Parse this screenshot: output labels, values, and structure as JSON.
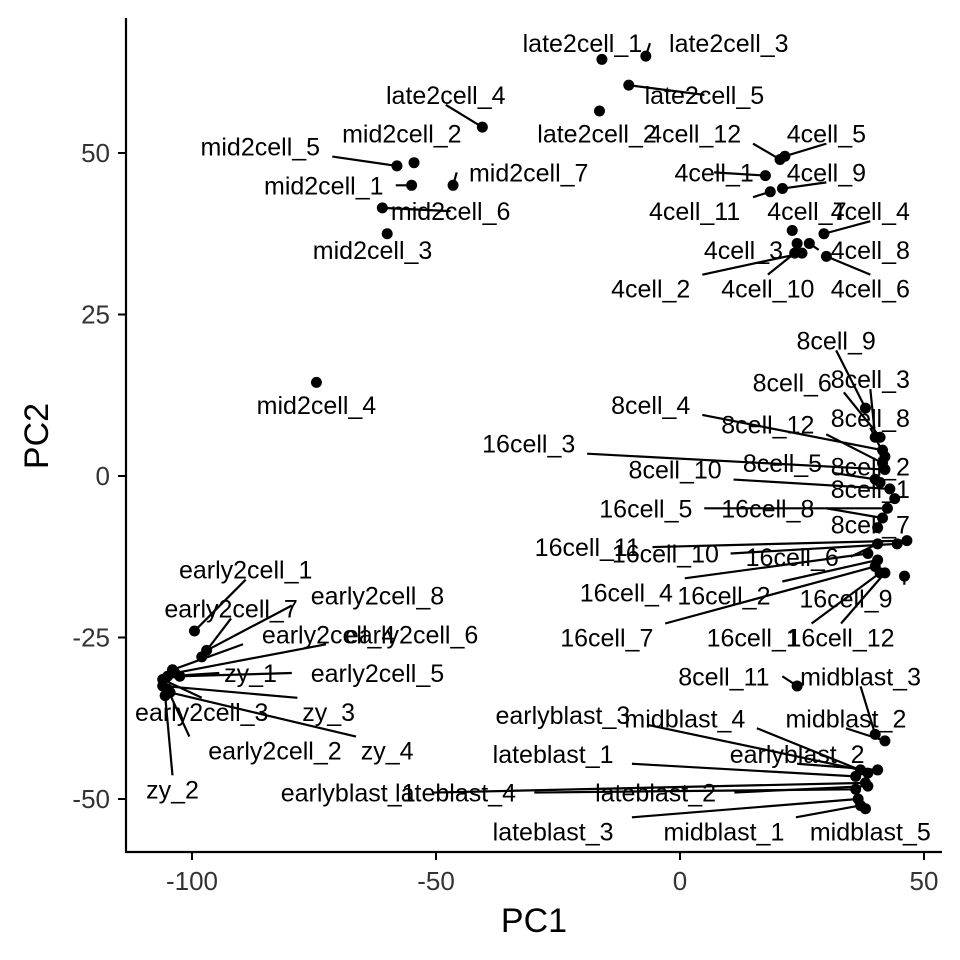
{
  "chart_data": {
    "type": "scatter",
    "title": "",
    "xlabel": "PC1",
    "ylabel": "PC2",
    "xlim": [
      -113,
      53
    ],
    "ylim": [
      -58,
      71
    ],
    "xticks": [
      -100,
      -50,
      0,
      50
    ],
    "yticks": [
      50,
      25,
      0,
      -25,
      -50
    ],
    "grid": false,
    "legend": "none",
    "points": [
      {
        "label": "late2cell_1",
        "x": -16,
        "y": 64.5,
        "lx": -20,
        "ly": 67
      },
      {
        "label": "late2cell_3",
        "x": -7,
        "y": 65,
        "lx": 10,
        "ly": 67
      },
      {
        "label": "late2cell_5",
        "x": -10.5,
        "y": 60.5,
        "lx": 5,
        "ly": 59
      },
      {
        "label": "late2cell_4",
        "x": -40.5,
        "y": 54,
        "lx": -48,
        "ly": 59
      },
      {
        "label": "late2cell_2",
        "x": -16.5,
        "y": 56.5,
        "lx": -17,
        "ly": 53
      },
      {
        "label": "mid2cell_2",
        "x": -54.5,
        "y": 48.5,
        "lx": -57,
        "ly": 53
      },
      {
        "label": "mid2cell_5",
        "x": -58,
        "y": 48,
        "lx": -86,
        "ly": 51
      },
      {
        "label": "mid2cell_7",
        "x": -46.5,
        "y": 45,
        "lx": -31,
        "ly": 47
      },
      {
        "label": "mid2cell_1",
        "x": -55,
        "y": 45,
        "lx": -73,
        "ly": 45
      },
      {
        "label": "mid2cell_6",
        "x": -61,
        "y": 41.5,
        "lx": -47,
        "ly": 41
      },
      {
        "label": "mid2cell_3",
        "x": -60,
        "y": 37.5,
        "lx": -63,
        "ly": 35
      },
      {
        "label": "mid2cell_4",
        "x": -74.5,
        "y": 14.5,
        "lx": -74.5,
        "ly": 11
      },
      {
        "label": "4cell_12",
        "x": 20.5,
        "y": 49,
        "lx": 3,
        "ly": 53
      },
      {
        "label": "4cell_5",
        "x": 21.5,
        "y": 49.5,
        "lx": 30,
        "ly": 53
      },
      {
        "label": "4cell_1",
        "x": 17.5,
        "y": 46.5,
        "lx": 7,
        "ly": 47
      },
      {
        "label": "4cell_9",
        "x": 21,
        "y": 44.5,
        "lx": 30,
        "ly": 47
      },
      {
        "label": "4cell_11",
        "x": 18.5,
        "y": 44,
        "lx": 3,
        "ly": 41
      },
      {
        "label": "4cell_7",
        "x": 23,
        "y": 38,
        "lx": 26,
        "ly": 41
      },
      {
        "label": "4cell_4",
        "x": 29.5,
        "y": 37.5,
        "lx": 39,
        "ly": 41
      },
      {
        "label": "4cell_3",
        "x": 24,
        "y": 36,
        "lx": 13,
        "ly": 35
      },
      {
        "label": "4cell_8",
        "x": 26.5,
        "y": 36,
        "lx": 39,
        "ly": 35
      },
      {
        "label": "4cell_2",
        "x": 25,
        "y": 34.5,
        "lx": -6,
        "ly": 29
      },
      {
        "label": "4cell_10",
        "x": 23.5,
        "y": 34.5,
        "lx": 18,
        "ly": 29
      },
      {
        "label": "4cell_6",
        "x": 30,
        "y": 34,
        "lx": 39,
        "ly": 29
      },
      {
        "label": "8cell_9",
        "x": 38,
        "y": 10.5,
        "lx": 32,
        "ly": 21
      },
      {
        "label": "8cell_6",
        "x": 41,
        "y": 6,
        "lx": 23,
        "ly": 14.5
      },
      {
        "label": "8cell_3",
        "x": 40,
        "y": 6,
        "lx": 39,
        "ly": 15
      },
      {
        "label": "8cell_4",
        "x": 41.5,
        "y": 4,
        "lx": -6,
        "ly": 11
      },
      {
        "label": "8cell_8",
        "x": 42,
        "y": 3,
        "lx": 39,
        "ly": 9
      },
      {
        "label": "8cell_12",
        "x": 41.5,
        "y": 2,
        "lx": 18,
        "ly": 8
      },
      {
        "label": "16cell_3",
        "x": 42,
        "y": 1,
        "lx": -31,
        "ly": 5
      },
      {
        "label": "8cell_5",
        "x": 40,
        "y": -0.5,
        "lx": 21,
        "ly": 2
      },
      {
        "label": "8cell_2",
        "x": 41,
        "y": -1,
        "lx": 39,
        "ly": 1.5
      },
      {
        "label": "8cell_10",
        "x": 43,
        "y": -2,
        "lx": -1,
        "ly": 1
      },
      {
        "label": "8cell_1",
        "x": 44,
        "y": -3.5,
        "lx": 39,
        "ly": -2
      },
      {
        "label": "16cell_5",
        "x": 42.5,
        "y": -5,
        "lx": -7,
        "ly": -5
      },
      {
        "label": "16cell_8",
        "x": 41.5,
        "y": -6.5,
        "lx": 18,
        "ly": -5
      },
      {
        "label": "8cell_7",
        "x": 40.5,
        "y": -8,
        "lx": 39,
        "ly": -7.5
      },
      {
        "label": "16cell_11",
        "x": 46.5,
        "y": -10,
        "lx": -19,
        "ly": -11
      },
      {
        "label": "16cell_10",
        "x": 44.5,
        "y": -10.5,
        "lx": -3,
        "ly": -12
      },
      {
        "label": "16cell_6",
        "x": 40.5,
        "y": -10.5,
        "lx": 23,
        "ly": -12.5
      },
      {
        "label": "16cell_4",
        "x": 38.5,
        "y": -12,
        "lx": -11,
        "ly": -18
      },
      {
        "label": "16cell_2",
        "x": 40.5,
        "y": -13,
        "lx": 9,
        "ly": -18.5
      },
      {
        "label": "16cell_9",
        "x": 46,
        "y": -15.5,
        "lx": 34,
        "ly": -19
      },
      {
        "label": "16cell_7",
        "x": 40,
        "y": -14,
        "lx": -15,
        "ly": -25
      },
      {
        "label": "16cell_1",
        "x": 41,
        "y": -15,
        "lx": 15,
        "ly": -25
      },
      {
        "label": "16cell_12",
        "x": 42,
        "y": -15,
        "lx": 33,
        "ly": -25
      },
      {
        "label": "8cell_11",
        "x": 24,
        "y": -32.5,
        "lx": 9,
        "ly": -31
      },
      {
        "label": "midblast_3",
        "x": 40,
        "y": -40,
        "lx": 37,
        "ly": -31
      },
      {
        "label": "earlyblast_3",
        "x": 37,
        "y": -45.5,
        "lx": -24,
        "ly": -37
      },
      {
        "label": "midblast_4",
        "x": 38.5,
        "y": -46,
        "lx": 1,
        "ly": -37.5
      },
      {
        "label": "midblast_2",
        "x": 42,
        "y": -41,
        "lx": 34,
        "ly": -37.5
      },
      {
        "label": "lateblast_1",
        "x": 36,
        "y": -46.5,
        "lx": -26,
        "ly": -43
      },
      {
        "label": "earlyblast_2",
        "x": 40.5,
        "y": -45.5,
        "lx": 24,
        "ly": -43
      },
      {
        "label": "earlyblast_1",
        "x": 38,
        "y": -47.5,
        "lx": -68,
        "ly": -49
      },
      {
        "label": "lateblast_4",
        "x": 36,
        "y": -48.5,
        "lx": -46,
        "ly": -49
      },
      {
        "label": "lateblast_2",
        "x": 38.5,
        "y": -48,
        "lx": -5,
        "ly": -49
      },
      {
        "label": "lateblast_3",
        "x": 36.5,
        "y": -50,
        "lx": -26,
        "ly": -55
      },
      {
        "label": "midblast_1",
        "x": 37,
        "y": -51,
        "lx": 9,
        "ly": -55
      },
      {
        "label": "midblast_5",
        "x": 38,
        "y": -51.5,
        "lx": 39,
        "ly": -55
      },
      {
        "label": "early2cell_1",
        "x": -99.5,
        "y": -24,
        "lx": -89,
        "ly": -14.5
      },
      {
        "label": "early2cell_7",
        "x": -98,
        "y": -28,
        "lx": -92,
        "ly": -20.5
      },
      {
        "label": "early2cell_8",
        "x": -97,
        "y": -27,
        "lx": -62,
        "ly": -18.5
      },
      {
        "label": "early2cell_4",
        "x": -104,
        "y": -30,
        "lx": -72,
        "ly": -24.5
      },
      {
        "label": "early2cell_6",
        "x": -103.5,
        "y": -30.5,
        "lx": -55,
        "ly": -24.5
      },
      {
        "label": "zy_1",
        "x": -105,
        "y": -31,
        "lx": -88,
        "ly": -30.5
      },
      {
        "label": "early2cell_5",
        "x": -102.5,
        "y": -31,
        "lx": -62,
        "ly": -30.5
      },
      {
        "label": "early2cell_3",
        "x": -106,
        "y": -31.5,
        "lx": -98,
        "ly": -36.5
      },
      {
        "label": "zy_3",
        "x": -106,
        "y": -32.5,
        "lx": -72,
        "ly": -36.5
      },
      {
        "label": "early2cell_2",
        "x": -105,
        "y": -33,
        "lx": -83,
        "ly": -42.5
      },
      {
        "label": "zy_4",
        "x": -104.5,
        "y": -33.5,
        "lx": -60,
        "ly": -42.5
      },
      {
        "label": "zy_2",
        "x": -105.5,
        "y": -34,
        "lx": -104,
        "ly": -48.5
      }
    ]
  }
}
